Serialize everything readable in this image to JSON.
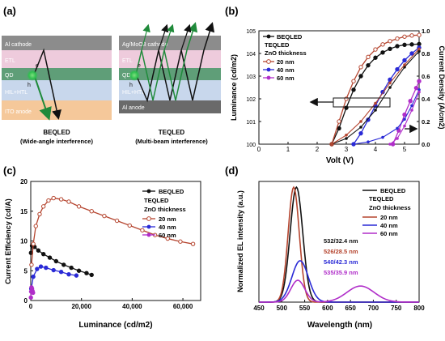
{
  "figure": {
    "panel_labels": [
      "(a)",
      "(b)",
      "(c)",
      "(d)"
    ]
  },
  "panel_a": {
    "left": {
      "layers": [
        "Al cathode",
        "ETL",
        "QD",
        "HIL+HTL",
        "ITO anode"
      ],
      "carriers": [
        "e",
        "h"
      ],
      "caption_line1": "BEQLED",
      "caption_line2": "(Wide-angle interference)"
    },
    "right": {
      "layers": [
        "Ag/MoO3 cathode",
        "ETL",
        "QD",
        "HIL+HTL",
        "Al anode"
      ],
      "carriers": [
        "e",
        "h"
      ],
      "caption_line1": "TEQLED",
      "caption_line2": "(Multi-beam interference)"
    },
    "colors": {
      "cathode": "#8c8c8c",
      "etl": "#eecbdc",
      "qd": "#5f9e78",
      "hil": "#c8d7ec",
      "ito": "#f5c89a",
      "al_anode": "#6a6a6a"
    }
  },
  "legend": {
    "beqled": "BEQLED",
    "teqled": "TEQLED",
    "zno": "ZnO thickness",
    "t20": "20 nm",
    "t40": "40 nm",
    "t60": "60 nm"
  },
  "chart_data": [
    {
      "panel": "(b)",
      "type": "line",
      "xlabel": "Volt (V)",
      "ylabel": "Luminance (cd/m2)",
      "y2label": "Current Density (A/cm2)",
      "xlim": [
        0,
        5.5
      ],
      "ylim": [
        1,
        100000
      ],
      "yscale": "log",
      "y2lim": [
        0,
        1.0
      ],
      "xticks": [
        0,
        1,
        2,
        3,
        4,
        5
      ],
      "yticks": [
        "10^0",
        "10^1",
        "10^2",
        "10^3",
        "10^4",
        "10^5"
      ],
      "y2ticks": [
        0.0,
        0.2,
        0.4,
        0.6,
        0.8,
        1.0
      ],
      "luminance_series": [
        {
          "name": "BEQLED",
          "color": "#111111",
          "x": [
            2.5,
            2.75,
            3.0,
            3.25,
            3.5,
            3.75,
            4.0,
            4.25,
            4.5,
            4.75,
            5.0,
            5.25,
            5.5
          ],
          "y": [
            1,
            5,
            40,
            250,
            1000,
            3000,
            6500,
            11000,
            16000,
            21000,
            24000,
            25000,
            26000
          ]
        },
        {
          "name": "20 nm",
          "color": "#b5452f",
          "x": [
            2.5,
            2.75,
            3.0,
            3.25,
            3.5,
            3.75,
            4.0,
            4.25,
            4.5,
            4.75,
            5.0,
            5.25,
            5.5
          ],
          "y": [
            1,
            10,
            100,
            600,
            2500,
            7000,
            15000,
            25000,
            35000,
            45000,
            55000,
            62000,
            65000
          ]
        },
        {
          "name": "40 nm",
          "color": "#2a2ad6",
          "x": [
            3.25,
            3.5,
            3.75,
            4.0,
            4.25,
            4.5,
            4.75,
            5.0,
            5.25,
            5.5
          ],
          "y": [
            1,
            3,
            12,
            50,
            200,
            700,
            2000,
            5000,
            10000,
            18000
          ]
        },
        {
          "name": "60 nm",
          "color": "#b02ec9",
          "x": [
            4.6,
            4.8,
            5.0,
            5.2,
            5.4,
            5.5
          ],
          "y": [
            1,
            4,
            20,
            80,
            300,
            600
          ]
        }
      ],
      "current_series": [
        {
          "name": "BEQLED",
          "color": "#111111",
          "x": [
            2.5,
            3.0,
            3.5,
            4.0,
            4.5,
            5.0,
            5.5
          ],
          "y": [
            0.0,
            0.05,
            0.15,
            0.3,
            0.5,
            0.68,
            0.82
          ]
        },
        {
          "name": "20 nm",
          "color": "#b5452f",
          "x": [
            2.5,
            3.0,
            3.5,
            4.0,
            4.5,
            5.0,
            5.5
          ],
          "y": [
            0.0,
            0.08,
            0.2,
            0.36,
            0.54,
            0.7,
            0.84
          ]
        },
        {
          "name": "40 nm",
          "color": "#2a2ad6",
          "x": [
            3.25,
            3.75,
            4.25,
            4.75,
            5.0,
            5.25,
            5.5
          ],
          "y": [
            0.0,
            0.02,
            0.06,
            0.14,
            0.22,
            0.34,
            0.48
          ]
        },
        {
          "name": "60 nm",
          "color": "#b02ec9",
          "x": [
            4.5,
            4.75,
            5.0,
            5.25,
            5.5
          ],
          "y": [
            0.0,
            0.05,
            0.16,
            0.3,
            0.46
          ]
        }
      ]
    },
    {
      "panel": "(c)",
      "type": "line",
      "xlabel": "Luminance (cd/m2)",
      "ylabel": "Current Efficiency (cd/A)",
      "xlim": [
        0,
        67000
      ],
      "ylim": [
        0,
        20
      ],
      "xticks": [
        0,
        20000,
        40000,
        60000
      ],
      "xtick_labels": [
        "0",
        "20,000",
        "40,000",
        "60,000"
      ],
      "yticks": [
        0,
        5,
        10,
        15,
        20
      ],
      "series": [
        {
          "name": "BEQLED",
          "color": "#111111",
          "x": [
            100,
            500,
            1500,
            3000,
            5000,
            7500,
            10000,
            13000,
            16000,
            19000,
            22000,
            24000
          ],
          "y": [
            8.0,
            9.2,
            9.0,
            8.4,
            7.8,
            7.2,
            6.6,
            6.0,
            5.5,
            5.0,
            4.6,
            4.3
          ]
        },
        {
          "name": "20 nm",
          "color": "#b5452f",
          "x": [
            300,
            1000,
            2000,
            3500,
            5000,
            7000,
            9000,
            12000,
            15000,
            19000,
            24000,
            29000,
            34000,
            39000,
            44000,
            49000,
            54000,
            59000,
            64000
          ],
          "y": [
            6.0,
            9.5,
            12.5,
            14.5,
            15.8,
            16.8,
            17.2,
            17.0,
            16.6,
            15.8,
            15.0,
            14.2,
            13.4,
            12.6,
            11.8,
            11.0,
            10.4,
            9.9,
            9.5
          ]
        },
        {
          "name": "40 nm",
          "color": "#2a2ad6",
          "x": [
            200,
            1000,
            2500,
            4000,
            6000,
            9000,
            12000,
            15000,
            18000
          ],
          "y": [
            2.0,
            4.0,
            5.3,
            5.7,
            5.5,
            5.1,
            4.8,
            4.4,
            4.2
          ]
        },
        {
          "name": "60 nm",
          "color": "#b02ec9",
          "x": [
            50,
            150,
            300,
            500,
            700,
            900
          ],
          "y": [
            0.5,
            1.5,
            2.2,
            2.0,
            1.6,
            1.3
          ]
        }
      ]
    },
    {
      "panel": "(d)",
      "type": "line",
      "xlabel": "Wavelength (nm)",
      "ylabel": "Normalized EL intensity (a.u.)",
      "xlim": [
        450,
        800
      ],
      "xticks": [
        450,
        500,
        550,
        600,
        650,
        700,
        750,
        800
      ],
      "ylim": [
        0,
        1.05
      ],
      "annotations": [
        {
          "text": "532/32.4 nm",
          "color": "#111111"
        },
        {
          "text": "526/28.5 nm",
          "color": "#b5452f"
        },
        {
          "text": "540/42.3 nm",
          "color": "#2a2ad6"
        },
        {
          "text": "535/35.9 nm",
          "color": "#b02ec9"
        }
      ],
      "series": [
        {
          "name": "BEQLED",
          "color": "#111111",
          "peak": 532,
          "fwhm": 32.4,
          "amp": 1.0
        },
        {
          "name": "20 nm",
          "color": "#b5452f",
          "peak": 526,
          "fwhm": 28.5,
          "amp": 1.0
        },
        {
          "name": "40 nm",
          "color": "#2a2ad6",
          "peak": 540,
          "fwhm": 42.3,
          "amp": 0.36
        },
        {
          "name": "60 nm",
          "color": "#b02ec9",
          "peak": 535,
          "fwhm": 35.9,
          "amp": 0.19,
          "peak2": 672,
          "fwhm2": 70,
          "amp2": 0.14
        }
      ]
    }
  ]
}
